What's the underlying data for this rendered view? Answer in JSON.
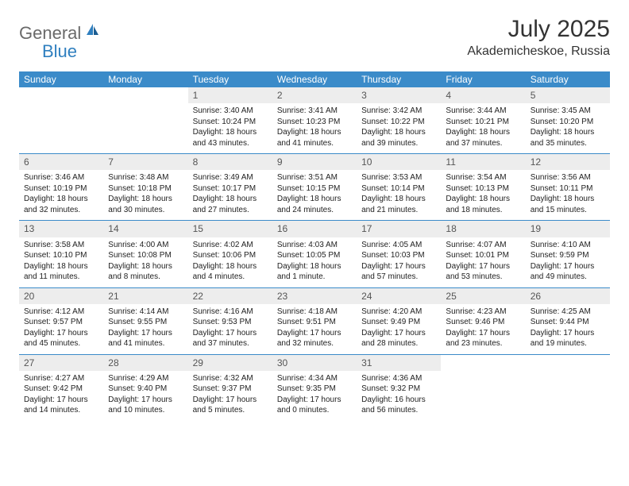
{
  "logo": {
    "text_gray": "General",
    "text_blue": "Blue"
  },
  "title": "July 2025",
  "location": "Akademicheskoe, Russia",
  "colors": {
    "header_bg": "#3b8bc9",
    "header_text": "#ffffff",
    "daynum_bg": "#ededed",
    "rule": "#3b8bc9",
    "logo_gray": "#6a6a6a",
    "logo_blue": "#2f7fbf"
  },
  "day_names": [
    "Sunday",
    "Monday",
    "Tuesday",
    "Wednesday",
    "Thursday",
    "Friday",
    "Saturday"
  ],
  "weeks": [
    [
      {
        "n": "",
        "sr": "",
        "ss": "",
        "dl": ""
      },
      {
        "n": "",
        "sr": "",
        "ss": "",
        "dl": ""
      },
      {
        "n": "1",
        "sr": "3:40 AM",
        "ss": "10:24 PM",
        "dl": "18 hours and 43 minutes."
      },
      {
        "n": "2",
        "sr": "3:41 AM",
        "ss": "10:23 PM",
        "dl": "18 hours and 41 minutes."
      },
      {
        "n": "3",
        "sr": "3:42 AM",
        "ss": "10:22 PM",
        "dl": "18 hours and 39 minutes."
      },
      {
        "n": "4",
        "sr": "3:44 AM",
        "ss": "10:21 PM",
        "dl": "18 hours and 37 minutes."
      },
      {
        "n": "5",
        "sr": "3:45 AM",
        "ss": "10:20 PM",
        "dl": "18 hours and 35 minutes."
      }
    ],
    [
      {
        "n": "6",
        "sr": "3:46 AM",
        "ss": "10:19 PM",
        "dl": "18 hours and 32 minutes."
      },
      {
        "n": "7",
        "sr": "3:48 AM",
        "ss": "10:18 PM",
        "dl": "18 hours and 30 minutes."
      },
      {
        "n": "8",
        "sr": "3:49 AM",
        "ss": "10:17 PM",
        "dl": "18 hours and 27 minutes."
      },
      {
        "n": "9",
        "sr": "3:51 AM",
        "ss": "10:15 PM",
        "dl": "18 hours and 24 minutes."
      },
      {
        "n": "10",
        "sr": "3:53 AM",
        "ss": "10:14 PM",
        "dl": "18 hours and 21 minutes."
      },
      {
        "n": "11",
        "sr": "3:54 AM",
        "ss": "10:13 PM",
        "dl": "18 hours and 18 minutes."
      },
      {
        "n": "12",
        "sr": "3:56 AM",
        "ss": "10:11 PM",
        "dl": "18 hours and 15 minutes."
      }
    ],
    [
      {
        "n": "13",
        "sr": "3:58 AM",
        "ss": "10:10 PM",
        "dl": "18 hours and 11 minutes."
      },
      {
        "n": "14",
        "sr": "4:00 AM",
        "ss": "10:08 PM",
        "dl": "18 hours and 8 minutes."
      },
      {
        "n": "15",
        "sr": "4:02 AM",
        "ss": "10:06 PM",
        "dl": "18 hours and 4 minutes."
      },
      {
        "n": "16",
        "sr": "4:03 AM",
        "ss": "10:05 PM",
        "dl": "18 hours and 1 minute."
      },
      {
        "n": "17",
        "sr": "4:05 AM",
        "ss": "10:03 PM",
        "dl": "17 hours and 57 minutes."
      },
      {
        "n": "18",
        "sr": "4:07 AM",
        "ss": "10:01 PM",
        "dl": "17 hours and 53 minutes."
      },
      {
        "n": "19",
        "sr": "4:10 AM",
        "ss": "9:59 PM",
        "dl": "17 hours and 49 minutes."
      }
    ],
    [
      {
        "n": "20",
        "sr": "4:12 AM",
        "ss": "9:57 PM",
        "dl": "17 hours and 45 minutes."
      },
      {
        "n": "21",
        "sr": "4:14 AM",
        "ss": "9:55 PM",
        "dl": "17 hours and 41 minutes."
      },
      {
        "n": "22",
        "sr": "4:16 AM",
        "ss": "9:53 PM",
        "dl": "17 hours and 37 minutes."
      },
      {
        "n": "23",
        "sr": "4:18 AM",
        "ss": "9:51 PM",
        "dl": "17 hours and 32 minutes."
      },
      {
        "n": "24",
        "sr": "4:20 AM",
        "ss": "9:49 PM",
        "dl": "17 hours and 28 minutes."
      },
      {
        "n": "25",
        "sr": "4:23 AM",
        "ss": "9:46 PM",
        "dl": "17 hours and 23 minutes."
      },
      {
        "n": "26",
        "sr": "4:25 AM",
        "ss": "9:44 PM",
        "dl": "17 hours and 19 minutes."
      }
    ],
    [
      {
        "n": "27",
        "sr": "4:27 AM",
        "ss": "9:42 PM",
        "dl": "17 hours and 14 minutes."
      },
      {
        "n": "28",
        "sr": "4:29 AM",
        "ss": "9:40 PM",
        "dl": "17 hours and 10 minutes."
      },
      {
        "n": "29",
        "sr": "4:32 AM",
        "ss": "9:37 PM",
        "dl": "17 hours and 5 minutes."
      },
      {
        "n": "30",
        "sr": "4:34 AM",
        "ss": "9:35 PM",
        "dl": "17 hours and 0 minutes."
      },
      {
        "n": "31",
        "sr": "4:36 AM",
        "ss": "9:32 PM",
        "dl": "16 hours and 56 minutes."
      },
      {
        "n": "",
        "sr": "",
        "ss": "",
        "dl": ""
      },
      {
        "n": "",
        "sr": "",
        "ss": "",
        "dl": ""
      }
    ]
  ],
  "labels": {
    "sunrise": "Sunrise:",
    "sunset": "Sunset:",
    "daylight": "Daylight:"
  }
}
